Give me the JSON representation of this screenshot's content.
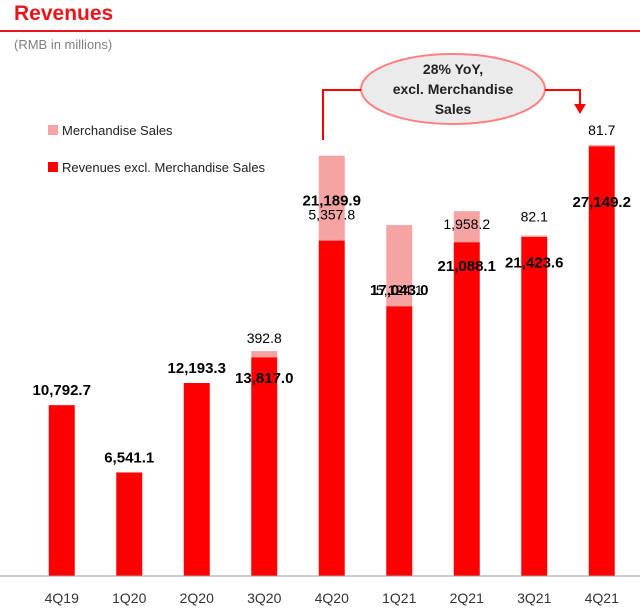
{
  "header": {
    "title": "Revenues",
    "subtitle": "(RMB in millions)"
  },
  "callout": {
    "lines": [
      "28% YoY,",
      "excl. Merchandise",
      "Sales"
    ]
  },
  "colors": {
    "primary": "#ff0000",
    "merchandise": "#f5a3a3",
    "title": "#e8161b"
  },
  "chart_data": {
    "type": "bar",
    "stacked": true,
    "categories": [
      "4Q19",
      "1Q20",
      "2Q20",
      "3Q20",
      "4Q20",
      "1Q21",
      "2Q21",
      "3Q21",
      "4Q21"
    ],
    "series": [
      {
        "name": "Revenues excl. Merchandise Sales",
        "values": [
          10792.7,
          6541.1,
          12193.3,
          13817.0,
          21189.9,
          17043.0,
          21088.1,
          21423.6,
          27149.2
        ],
        "labels": [
          "10,792.7",
          "6,541.1",
          "12,193.3",
          "13,817.0",
          "21,189.9",
          "17,043.0",
          "21,088.1",
          "21,423.6",
          "27,149.2"
        ]
      },
      {
        "name": "Merchandise Sales",
        "values": [
          0,
          0,
          0,
          392.8,
          5357.8,
          5124.1,
          1958.2,
          82.1,
          81.7
        ],
        "labels": [
          "",
          "",
          "",
          "392.8",
          "5,357.8",
          "5,124.1",
          "1,958.2",
          "82.1",
          "81.7"
        ]
      }
    ],
    "legend": "top-left",
    "grid": false
  }
}
